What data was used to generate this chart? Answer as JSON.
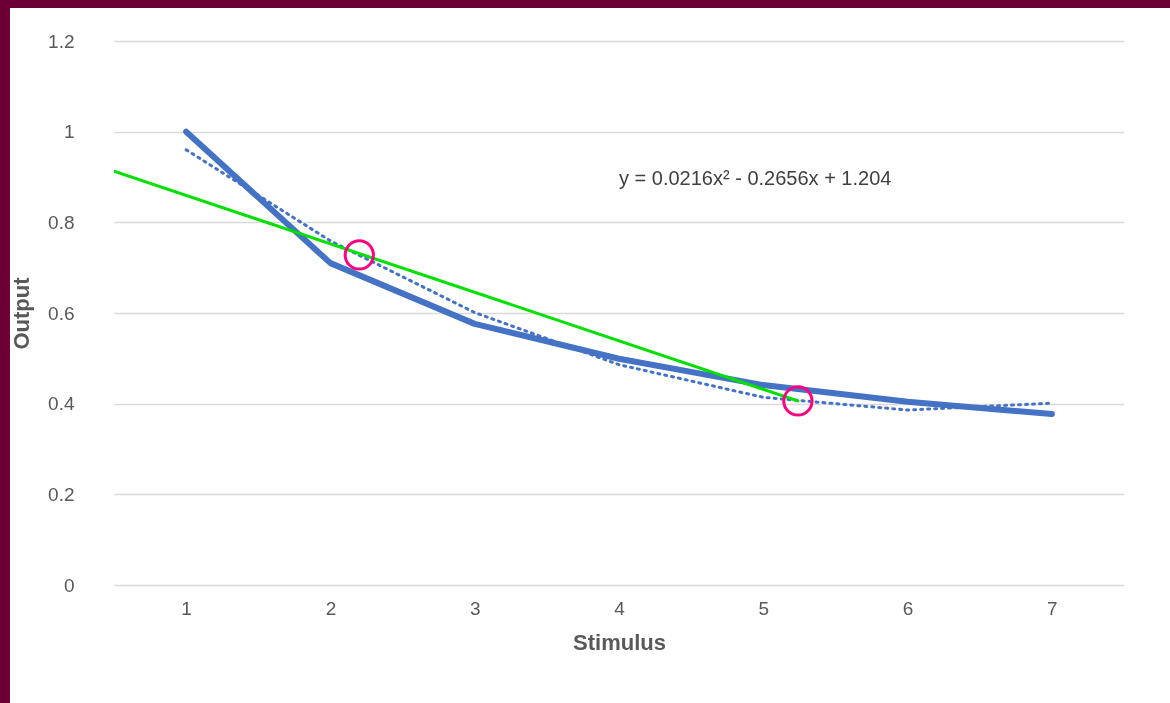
{
  "chart_data": {
    "type": "line",
    "xlabel": "Stimulus",
    "ylabel": "Output",
    "xlim": [
      0.5,
      7.5
    ],
    "xticks": [
      1,
      2,
      3,
      4,
      5,
      6,
      7
    ],
    "ylim": [
      0,
      1.2
    ],
    "yticks": [
      0,
      0.2,
      0.4,
      0.6,
      0.8,
      1,
      1.2
    ],
    "grid": "y",
    "annotations": [
      "y = 0.0216x² - 0.2656x + 1.204"
    ],
    "series": [
      {
        "color": "#4472c4",
        "x": [
          1,
          2,
          3,
          4,
          5,
          6,
          7
        ],
        "values": [
          1.0,
          0.71,
          0.576,
          0.499,
          0.441,
          0.404,
          0.377
        ]
      },
      {
        "color": "#4472c4",
        "line_style": "dotted",
        "x": [
          1,
          2,
          3,
          4,
          5,
          6,
          7
        ],
        "values": [
          0.96,
          0.759,
          0.601,
          0.486,
          0.414,
          0.386,
          0.401
        ]
      },
      {
        "color": "#00e000",
        "x": [
          0.5,
          5.24
        ],
        "values": [
          0.913,
          0.406
        ]
      },
      {
        "type": "scatter",
        "color": "#ff0080",
        "marker": "circle",
        "x": [
          2.2,
          5.24
        ],
        "values": [
          0.728,
          0.406
        ]
      }
    ]
  }
}
